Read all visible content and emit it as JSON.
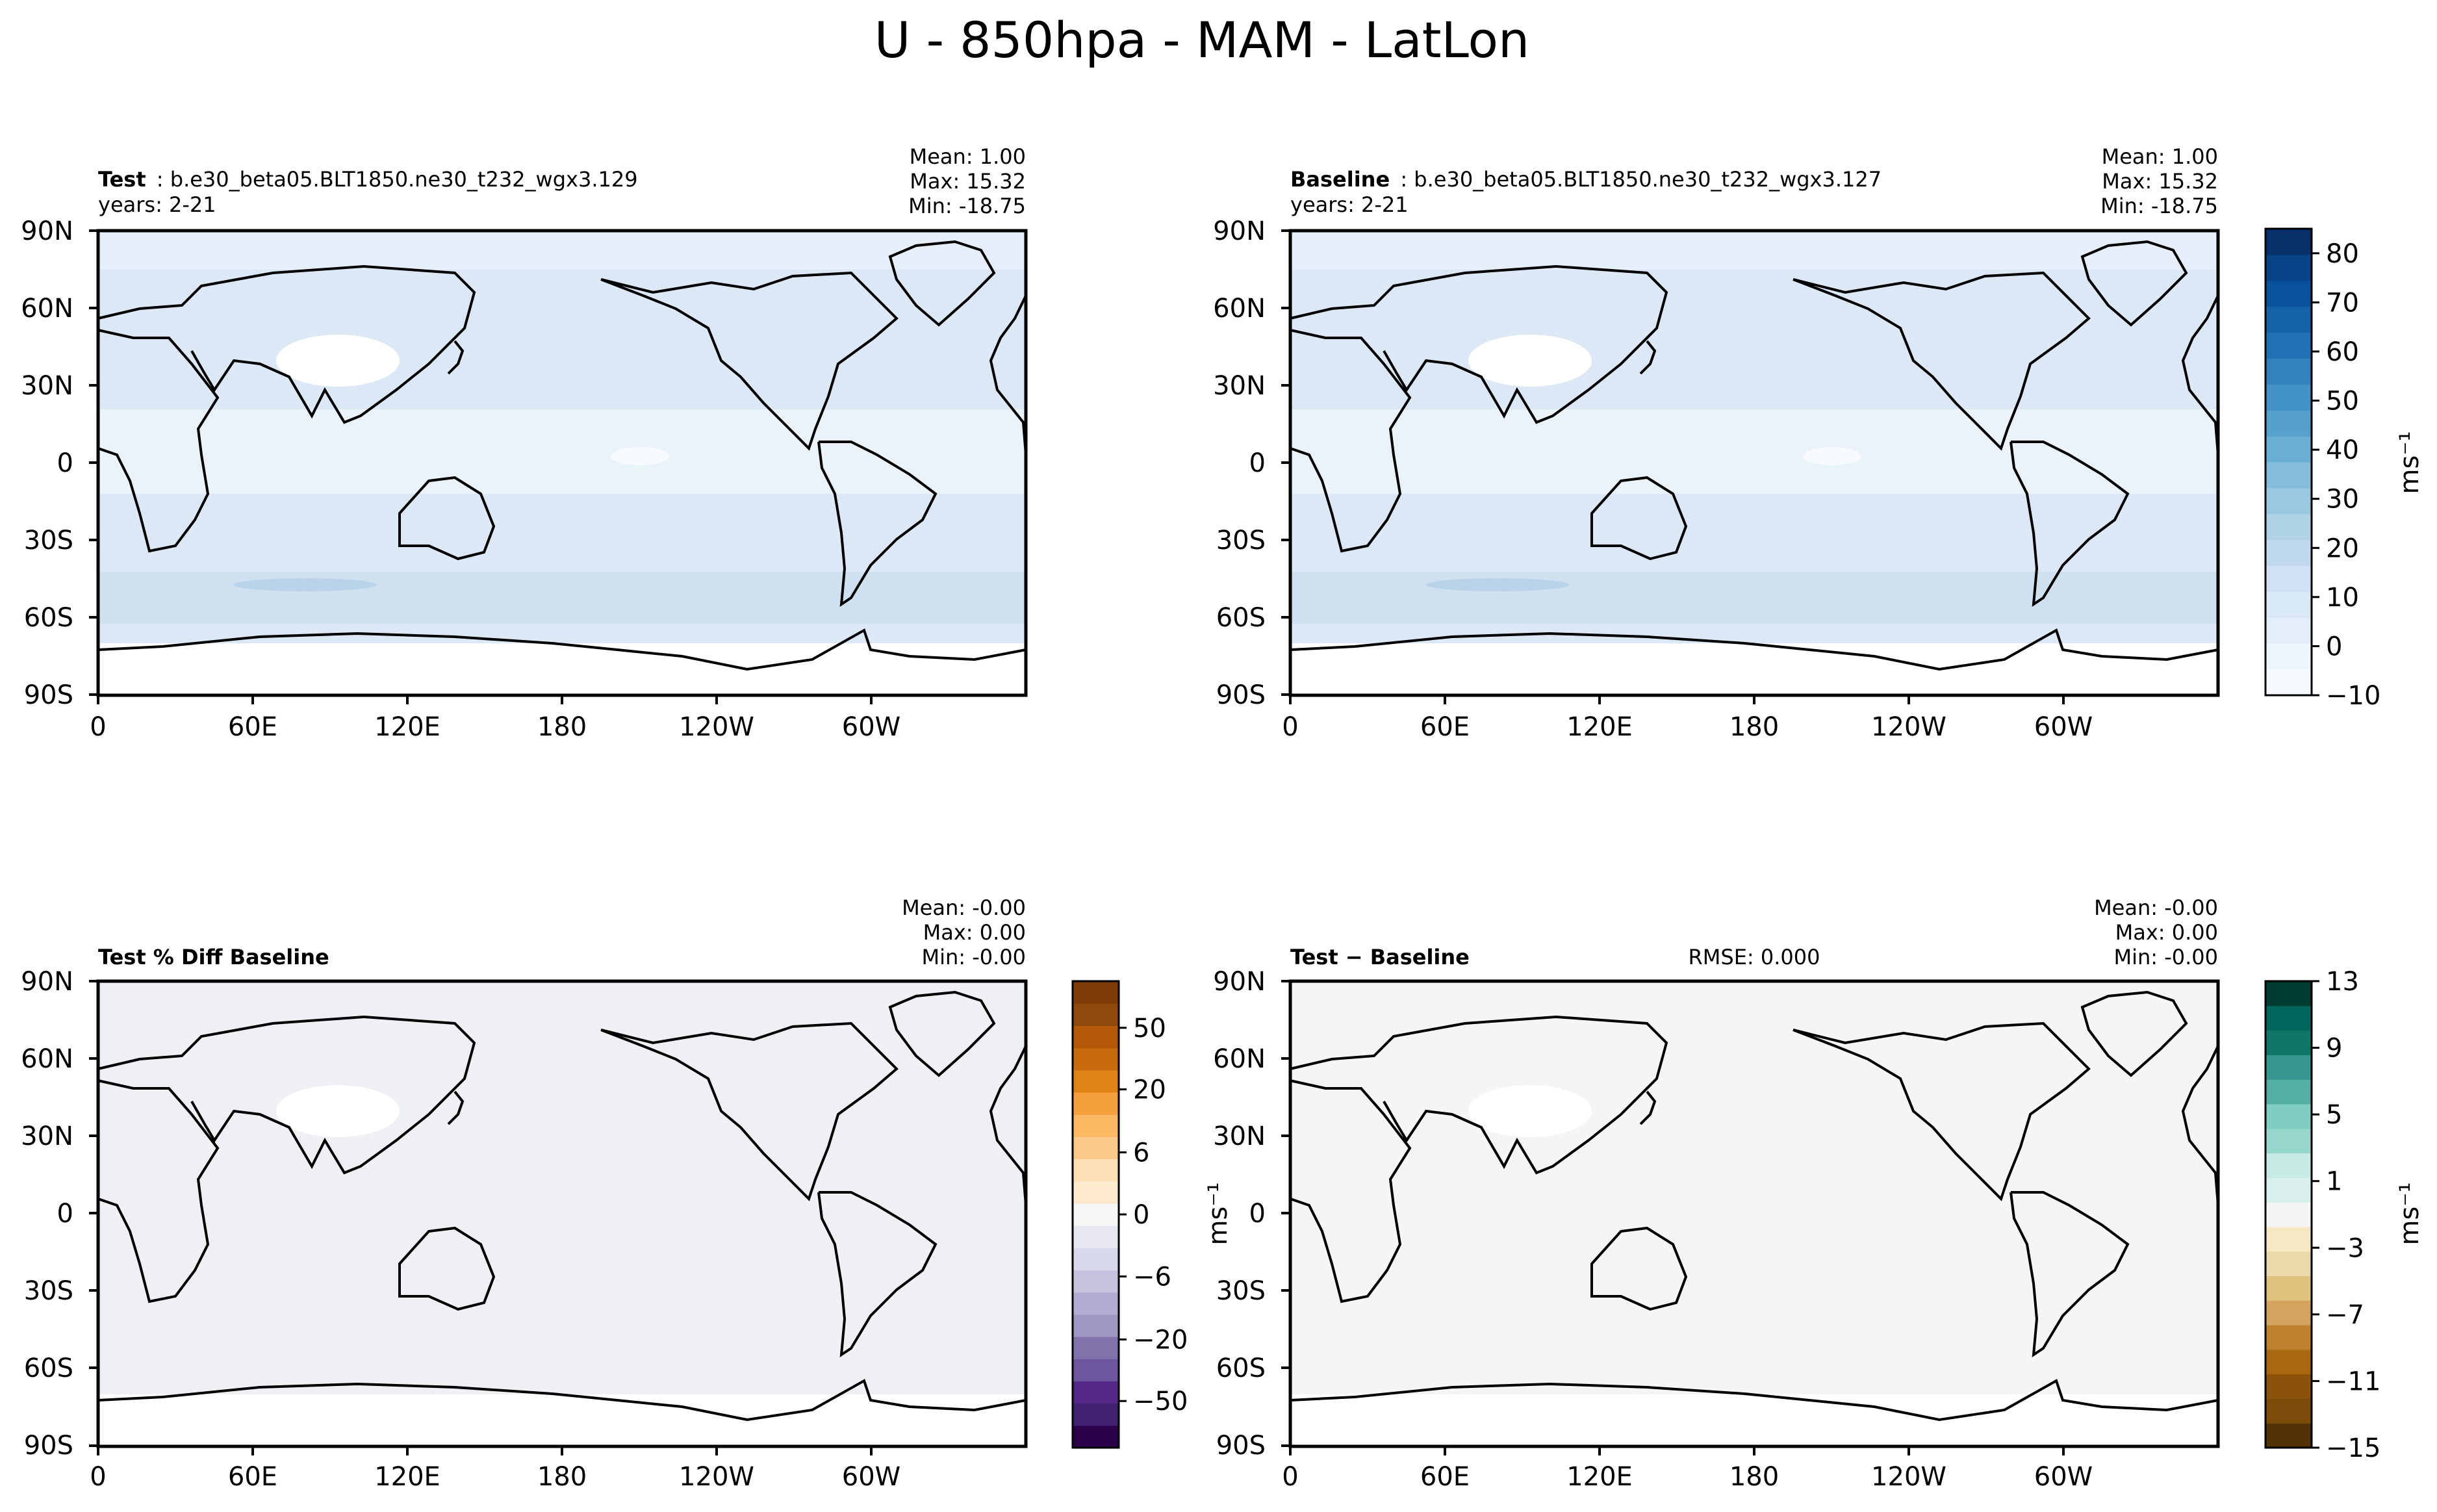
{
  "figure": {
    "title": "U - 850hpa - MAM - LatLon"
  },
  "colors": {
    "blues": [
      "#f7fbff",
      "#eef5fc",
      "#e3eef9",
      "#d9e8f5",
      "#cfe1f2",
      "#c1d9ed",
      "#b0d2e7",
      "#9ac8e0",
      "#84bcdb",
      "#6aaed6",
      "#56a0ce",
      "#4292c6",
      "#3282be",
      "#2171b5",
      "#1462a8",
      "#08519c",
      "#084287",
      "#08306b"
    ],
    "purple_orange": [
      "#2d004b",
      "#432371",
      "#542788",
      "#6d55a0",
      "#8073ac",
      "#9e97c4",
      "#b2abd2",
      "#c8c4e0",
      "#d8daeb",
      "#e8e8f2",
      "#f7f7f7",
      "#fde9cc",
      "#fee0b6",
      "#fdc98b",
      "#fdb863",
      "#f5a03d",
      "#e08214",
      "#c76a0c",
      "#b35806",
      "#8f4a0b",
      "#7f3b08"
    ],
    "brown_teal": [
      "#543005",
      "#7d4b0a",
      "#8c510a",
      "#a8680f",
      "#bf812d",
      "#d2a45e",
      "#dfc27d",
      "#ecd9a9",
      "#f6e8c3",
      "#f5f5f5",
      "#d8efeb",
      "#c7eae5",
      "#97d6cc",
      "#80cdc1",
      "#54b0a3",
      "#35978f",
      "#117667",
      "#01665e",
      "#003c30"
    ],
    "test_field": "#dce8f5",
    "pct_field": "#eef0f4",
    "diff_field": "#f4f5f4"
  },
  "panels": [
    {
      "id": "test",
      "case_label": "Test",
      "case_name": "b.e30_beta05.BLT1850.ne30_t232_wgx3.129",
      "years": "years: 2-21",
      "stats": [
        "Mean:  1.00",
        "Max: 15.32",
        "Min: -18.75"
      ],
      "rmse": ""
    },
    {
      "id": "baseline",
      "case_label": "Baseline",
      "case_name": "b.e30_beta05.BLT1850.ne30_t232_wgx3.127",
      "years": "years: 2-21",
      "stats": [
        "Mean:  1.00",
        "Max: 15.32",
        "Min: -18.75"
      ],
      "rmse": ""
    },
    {
      "id": "pct-diff",
      "case_label": "Test % Diff Baseline",
      "case_name": "",
      "years": "",
      "stats": [
        "Mean: -0.00",
        "Max:  0.00",
        "Min: -0.00"
      ],
      "rmse": ""
    },
    {
      "id": "diff",
      "case_label": "Test − Baseline",
      "case_name": "",
      "years": "",
      "stats": [
        "Mean: -0.00",
        "Max:  0.00",
        "Min: -0.00"
      ],
      "rmse": "RMSE: 0.000"
    }
  ],
  "chart_data": [
    {
      "type": "heatmap",
      "panel": "Test",
      "title": "Test : b.e30_beta05.BLT1850.ne30_t232_wgx3.129",
      "subtitle": "years: 2-21",
      "x_ticks": [
        "0",
        "60E",
        "120E",
        "180",
        "120W",
        "60W"
      ],
      "y_ticks": [
        "90N",
        "60N",
        "30N",
        "0",
        "30S",
        "60S",
        "90S"
      ],
      "xlim": [
        0,
        360
      ],
      "ylim": [
        -90,
        90
      ],
      "mean": 1.0,
      "max": 15.32,
      "min": -18.75,
      "colorbar_ticks": [
        80,
        70,
        60,
        50,
        40,
        30,
        20,
        10,
        0,
        -10
      ],
      "colorbar_range": [
        -10,
        85
      ],
      "units": "ms⁻¹"
    },
    {
      "type": "heatmap",
      "panel": "Baseline",
      "title": "Baseline : b.e30_beta05.BLT1850.ne30_t232_wgx3.127",
      "subtitle": "years: 2-21",
      "x_ticks": [
        "0",
        "60E",
        "120E",
        "180",
        "120W",
        "60W"
      ],
      "y_ticks": [
        "90N",
        "60N",
        "30N",
        "0",
        "30S",
        "60S",
        "90S"
      ],
      "xlim": [
        0,
        360
      ],
      "ylim": [
        -90,
        90
      ],
      "mean": 1.0,
      "max": 15.32,
      "min": -18.75,
      "colorbar_ticks": [
        80,
        70,
        60,
        50,
        40,
        30,
        20,
        10,
        0,
        -10
      ],
      "colorbar_range": [
        -10,
        85
      ],
      "units": "ms⁻¹"
    },
    {
      "type": "heatmap",
      "panel": "Test % Diff Baseline",
      "x_ticks": [
        "0",
        "60E",
        "120E",
        "180",
        "120W",
        "60W"
      ],
      "y_ticks": [
        "90N",
        "60N",
        "30N",
        "0",
        "30S",
        "60S",
        "90S"
      ],
      "xlim": [
        0,
        360
      ],
      "ylim": [
        -90,
        90
      ],
      "mean": -0.0,
      "max": 0.0,
      "min": -0.0,
      "colorbar_ticks": [
        50,
        20,
        6,
        0,
        -6,
        -20,
        -50
      ],
      "colorbar_labels": [
        "50",
        "20",
        "6",
        "0",
        "−6",
        "−20",
        "−50"
      ],
      "units": "ms⁻¹"
    },
    {
      "type": "heatmap",
      "panel": "Test − Baseline",
      "rmse": 0.0,
      "x_ticks": [
        "0",
        "60E",
        "120E",
        "180",
        "120W",
        "60W"
      ],
      "y_ticks": [
        "90N",
        "60N",
        "30N",
        "0",
        "30S",
        "60S",
        "90S"
      ],
      "xlim": [
        0,
        360
      ],
      "ylim": [
        -90,
        90
      ],
      "mean": -0.0,
      "max": 0.0,
      "min": -0.0,
      "colorbar_ticks": [
        13,
        9,
        5,
        1,
        -3,
        -7,
        -11,
        -15
      ],
      "colorbar_labels": [
        "13",
        "9",
        "5",
        "1",
        "−3",
        "−7",
        "−11",
        "−15"
      ],
      "colorbar_range": [
        -15,
        13
      ],
      "units": "ms⁻¹"
    }
  ]
}
